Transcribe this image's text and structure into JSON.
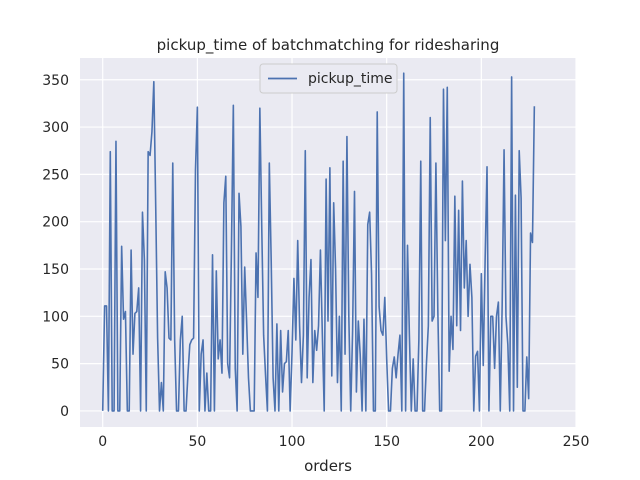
{
  "chart_data": {
    "type": "line",
    "title": "pickup_time of batchmatching for ridesharing",
    "xlabel": "orders",
    "ylabel": "",
    "xlim": [
      -12,
      250
    ],
    "ylim": [
      -17,
      373
    ],
    "xticks": [
      0,
      50,
      100,
      150,
      200,
      250
    ],
    "yticks": [
      0,
      50,
      100,
      150,
      200,
      250,
      300,
      350
    ],
    "grid": true,
    "legend": "upper center",
    "style": {
      "background": "#eaeaf2",
      "grid_color": "#ffffff",
      "line_color": "#4c72b0"
    },
    "series": [
      {
        "name": "pickup_time",
        "values": [
          0,
          111,
          111,
          0,
          274,
          0,
          0,
          285,
          0,
          0,
          174,
          97,
          105,
          0,
          0,
          170,
          60,
          103,
          105,
          130,
          0,
          210,
          160,
          0,
          274,
          270,
          295,
          348,
          215,
          77,
          0,
          30,
          0,
          147,
          130,
          77,
          75,
          262,
          75,
          0,
          0,
          75,
          100,
          0,
          0,
          38,
          70,
          75,
          77,
          255,
          321,
          0,
          60,
          75,
          0,
          40,
          0,
          0,
          165,
          0,
          148,
          55,
          75,
          40,
          220,
          248,
          50,
          35,
          172,
          323,
          45,
          0,
          230,
          195,
          60,
          152,
          95,
          35,
          0,
          0,
          0,
          167,
          120,
          320,
          195,
          80,
          38,
          0,
          262,
          158,
          35,
          0,
          92,
          0,
          85,
          20,
          50,
          52,
          85,
          0,
          62,
          140,
          75,
          180,
          90,
          30,
          80,
          275,
          35,
          120,
          160,
          30,
          85,
          64,
          90,
          170,
          82,
          0,
          245,
          95,
          257,
          37,
          220,
          150,
          30,
          100,
          0,
          264,
          60,
          290,
          100,
          0,
          85,
          232,
          20,
          95,
          60,
          0,
          97,
          0,
          197,
          210,
          145,
          0,
          0,
          316,
          110,
          85,
          80,
          120,
          55,
          0,
          0,
          45,
          57,
          35,
          60,
          80,
          0,
          357,
          0,
          175,
          80,
          0,
          55,
          0,
          0,
          75,
          264,
          0,
          0,
          50,
          90,
          310,
          95,
          100,
          262,
          108,
          0,
          0,
          340,
          180,
          342,
          42,
          100,
          65,
          227,
          90,
          212,
          85,
          243,
          130,
          180,
          100,
          155,
          120,
          0,
          58,
          63,
          0,
          145,
          48,
          160,
          258,
          0,
          100,
          100,
          45,
          100,
          115,
          0,
          112,
          276,
          100,
          70,
          0,
          353,
          0,
          228,
          25,
          275,
          225,
          0,
          0,
          57,
          13,
          188,
          178,
          322
        ]
      }
    ]
  }
}
